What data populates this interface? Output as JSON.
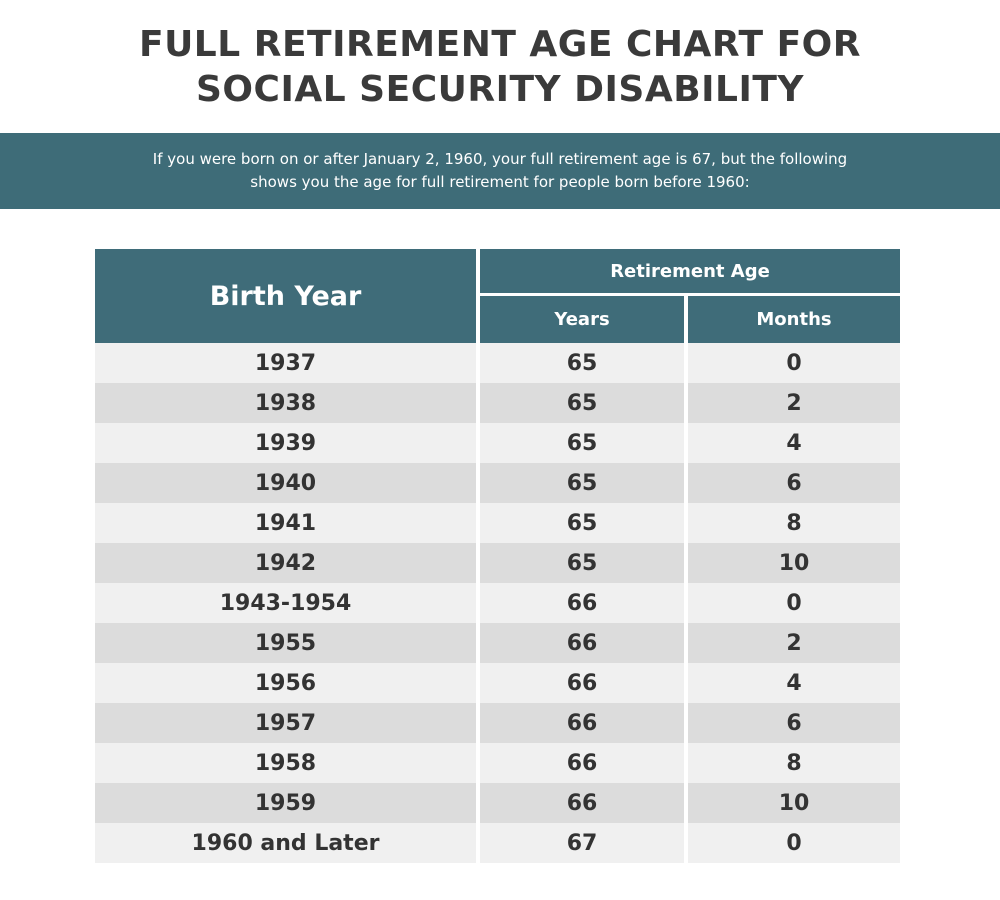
{
  "title": [
    "FULL RETIREMENT AGE CHART FOR",
    "SOCIAL SECURITY DISABILITY"
  ],
  "banner": [
    "If you were born on or after January 2, 1960, your full retirement age is 67, but the following",
    "shows you the age for full retirement for people born before 1960:"
  ],
  "colors": {
    "header": "#3f6c79",
    "row_light": "#f0f0f0",
    "row_dark": "#dcdcdc"
  },
  "table": {
    "headers": {
      "birth_year": "Birth Year",
      "retirement_age": "Retirement Age",
      "years": "Years",
      "months": "Months"
    },
    "rows": [
      [
        "1937",
        "65",
        "0"
      ],
      [
        "1938",
        "65",
        "2"
      ],
      [
        "1939",
        "65",
        "4"
      ],
      [
        "1940",
        "65",
        "6"
      ],
      [
        "1941",
        "65",
        "8"
      ],
      [
        "1942",
        "65",
        "10"
      ],
      [
        "1943-1954",
        "66",
        "0"
      ],
      [
        "1955",
        "66",
        "2"
      ],
      [
        "1956",
        "66",
        "4"
      ],
      [
        "1957",
        "66",
        "6"
      ],
      [
        "1958",
        "66",
        "8"
      ],
      [
        "1959",
        "66",
        "10"
      ],
      [
        "1960 and Later",
        "67",
        "0"
      ]
    ]
  }
}
